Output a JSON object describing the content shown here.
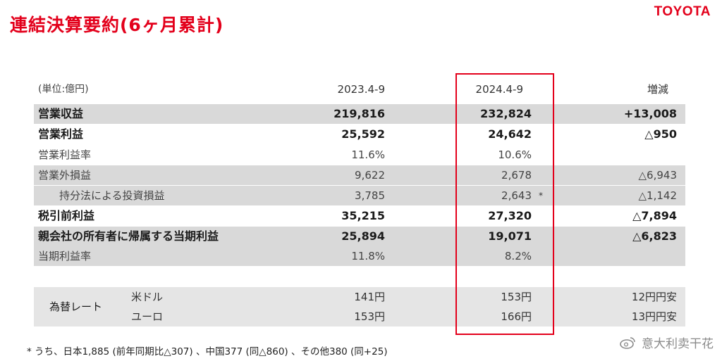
{
  "title": "連結決算要約(6ヶ月累計)",
  "logo": "TOYOTA",
  "header": {
    "unit": "(単位:億円)",
    "col1": "2023.4-9",
    "col2": "2024.4-9",
    "col3": "増減"
  },
  "rows": [
    {
      "label": "営業収益",
      "v1": "219,816",
      "v2": "232,824",
      "v3": "+13,008"
    },
    {
      "label": "営業利益",
      "v1": "25,592",
      "v2": "24,642",
      "v3": "△950"
    },
    {
      "label": "営業利益率",
      "v1": "11.6%",
      "v2": "10.6%",
      "v3": ""
    },
    {
      "label": "営業外損益",
      "v1": "9,622",
      "v2": "2,678",
      "v3": "△6,943"
    },
    {
      "label": "持分法による投資損益",
      "v1": "3,785",
      "v2": "2,643",
      "mark": "*",
      "v3": "△1,142"
    },
    {
      "label": "税引前利益",
      "v1": "35,215",
      "v2": "27,320",
      "v3": "△7,894"
    },
    {
      "label": "親会社の所有者に帰属する当期利益",
      "v1": "25,894",
      "v2": "19,071",
      "v3": "△6,823"
    },
    {
      "label": "当期利益率",
      "v1": "11.8%",
      "v2": "8.2%",
      "v3": ""
    }
  ],
  "fx": {
    "label": "為替レート",
    "rows": [
      {
        "name": "米ドル",
        "v1": "141円",
        "v2": "153円",
        "v3": "12円円安"
      },
      {
        "name": "ユーロ",
        "v1": "153円",
        "v2": "166円",
        "v3": "13円円安"
      }
    ]
  },
  "footnote": "* うち、日本1,885 (前年同期比△307) 、中国377 (同△860) 、その他380 (同+25)",
  "watermark": "意大利卖干花",
  "colors": {
    "accent": "#e3001b",
    "row_shade": "#d9d9d9",
    "fx_shade": "#e5e5e5"
  }
}
